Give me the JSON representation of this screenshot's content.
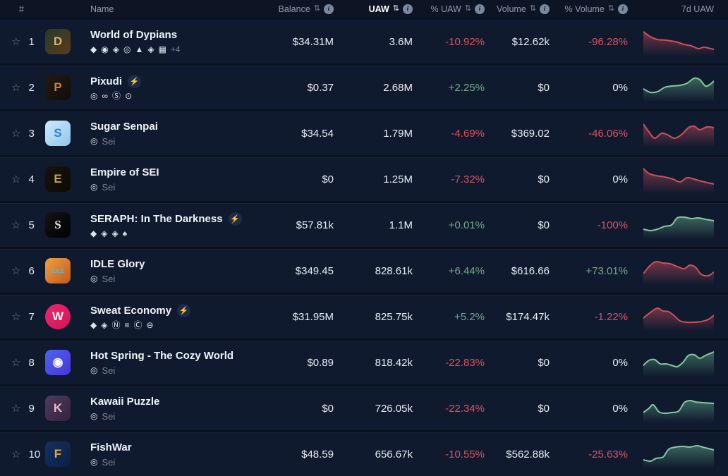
{
  "icons": {
    "star": "☆",
    "bolt": "⚡",
    "sort": "⇅",
    "info": "i"
  },
  "colors": {
    "positive": "#72a886",
    "negative": "#d8545e",
    "neutral": "#edf0f5",
    "spark_red_line": "#cf4e59",
    "spark_red_fill": "#d4515c",
    "spark_green_line": "#85c9a0",
    "spark_green_fill": "#6fc093",
    "row_bg": "#101a2f",
    "header_bg": "#0d1524"
  },
  "header": {
    "columns": [
      {
        "label": "#"
      },
      {
        "label": "Name"
      },
      {
        "label": "Balance",
        "sortable": true,
        "info": true
      },
      {
        "label": "UAW",
        "sortable": true,
        "info": true,
        "active": true
      },
      {
        "label": "% UAW",
        "sortable": true,
        "info": true
      },
      {
        "label": "Volume",
        "sortable": true,
        "info": true
      },
      {
        "label": "% Volume",
        "sortable": true,
        "info": true
      },
      {
        "label": "7d UAW"
      }
    ]
  },
  "chart_data": {
    "type": "line",
    "note": "7d UAW sparklines per row; points are [x 0-100, y 0-40 top-down]"
  },
  "rows": [
    {
      "rank": "1",
      "name": "World of Dypians",
      "boosted": false,
      "icon": {
        "glyph": "D",
        "fg": "#d9b36a",
        "bg1": "#243b2e",
        "bg2": "#5a3b1a"
      },
      "chains": [
        {
          "name": "ethereum",
          "glyph": "◆"
        },
        {
          "name": "base",
          "glyph": "◉"
        },
        {
          "name": "bnb-chain",
          "glyph": "◈"
        },
        {
          "name": "sei",
          "glyph": "◎"
        },
        {
          "name": "avalanche",
          "glyph": "▲"
        },
        {
          "name": "opbnb",
          "glyph": "◈"
        },
        {
          "name": "manta",
          "glyph": "▦"
        }
      ],
      "chains_extra": "+4",
      "chain_label": "",
      "balance": "$34.31M",
      "uaw": "3.6M",
      "uaw_pct": "-10.92%",
      "uaw_dir": "down",
      "volume": "$12.62k",
      "volume_pct": "-96.28%",
      "volume_dir": "down",
      "spark": {
        "color": "red",
        "points": [
          [
            0,
            6
          ],
          [
            10,
            13
          ],
          [
            20,
            17
          ],
          [
            32,
            18
          ],
          [
            45,
            20
          ],
          [
            58,
            24
          ],
          [
            68,
            26
          ],
          [
            78,
            30
          ],
          [
            86,
            28
          ],
          [
            100,
            31
          ]
        ]
      }
    },
    {
      "rank": "2",
      "name": "Pixudi",
      "boosted": true,
      "icon": {
        "glyph": "P",
        "fg": "#d3803f",
        "bg1": "#221a12",
        "bg2": "#120d09"
      },
      "chains": [
        {
          "name": "sei",
          "glyph": "◎"
        },
        {
          "name": "link-chain",
          "glyph": "∞"
        },
        {
          "name": "skale",
          "glyph": "Ⓢ"
        },
        {
          "name": "quai",
          "glyph": "⊙"
        }
      ],
      "chains_extra": "",
      "chain_label": "",
      "balance": "$0.37",
      "uaw": "2.68M",
      "uaw_pct": "+2.25%",
      "uaw_dir": "up",
      "volume": "$0",
      "volume_pct": "0%",
      "volume_dir": "neutral",
      "spark": {
        "color": "green",
        "points": [
          [
            0,
            22
          ],
          [
            10,
            27
          ],
          [
            20,
            26
          ],
          [
            30,
            20
          ],
          [
            40,
            18
          ],
          [
            52,
            17
          ],
          [
            62,
            14
          ],
          [
            72,
            7
          ],
          [
            80,
            9
          ],
          [
            88,
            18
          ],
          [
            94,
            16
          ],
          [
            100,
            11
          ]
        ]
      }
    },
    {
      "rank": "3",
      "name": "Sugar Senpai",
      "boosted": false,
      "icon": {
        "glyph": "S",
        "fg": "#2f7fd0",
        "bg1": "#cfeafa",
        "bg2": "#8fc6ee"
      },
      "chains": [
        {
          "name": "sei",
          "glyph": "◎"
        }
      ],
      "chains_extra": "",
      "chain_label": "Sei",
      "balance": "$34.54",
      "uaw": "1.79M",
      "uaw_pct": "-4.69%",
      "uaw_dir": "down",
      "volume": "$369.02",
      "volume_pct": "-46.06%",
      "volume_dir": "down",
      "spark": {
        "color": "red",
        "points": [
          [
            0,
            7
          ],
          [
            8,
            18
          ],
          [
            16,
            27
          ],
          [
            26,
            20
          ],
          [
            34,
            22
          ],
          [
            44,
            27
          ],
          [
            54,
            22
          ],
          [
            64,
            12
          ],
          [
            72,
            10
          ],
          [
            80,
            15
          ],
          [
            90,
            11
          ],
          [
            100,
            12
          ]
        ]
      }
    },
    {
      "rank": "4",
      "name": "Empire of SEI",
      "boosted": false,
      "icon": {
        "glyph": "E",
        "fg": "#caa24d",
        "bg1": "#17130a",
        "bg2": "#0c0a06"
      },
      "chains": [
        {
          "name": "sei",
          "glyph": "◎"
        }
      ],
      "chains_extra": "",
      "chain_label": "Sei",
      "balance": "$0",
      "uaw": "1.25M",
      "uaw_pct": "-7.32%",
      "uaw_dir": "down",
      "volume": "$0",
      "volume_pct": "0%",
      "volume_dir": "neutral",
      "spark": {
        "color": "red",
        "points": [
          [
            0,
            5
          ],
          [
            8,
            12
          ],
          [
            18,
            15
          ],
          [
            30,
            17
          ],
          [
            42,
            20
          ],
          [
            52,
            24
          ],
          [
            62,
            18
          ],
          [
            72,
            20
          ],
          [
            82,
            23
          ],
          [
            100,
            27
          ]
        ]
      }
    },
    {
      "rank": "5",
      "name": "SERAPH: In The Darkness",
      "boosted": true,
      "icon": {
        "glyph": "S",
        "fg": "#e8e6e0",
        "bg1": "#141414",
        "bg2": "#000000",
        "serif": true
      },
      "chains": [
        {
          "name": "ethereum",
          "glyph": "◆"
        },
        {
          "name": "bnb-chain",
          "glyph": "◈"
        },
        {
          "name": "opbnb",
          "glyph": "◈"
        },
        {
          "name": "treasure",
          "glyph": "♠"
        }
      ],
      "chains_extra": "",
      "chain_label": "",
      "balance": "$57.81k",
      "uaw": "1.1M",
      "uaw_pct": "+0.01%",
      "uaw_dir": "up",
      "volume": "$0",
      "volume_pct": "-100%",
      "volume_dir": "down",
      "spark": {
        "color": "green",
        "points": [
          [
            0,
            26
          ],
          [
            10,
            28
          ],
          [
            20,
            26
          ],
          [
            30,
            22
          ],
          [
            40,
            20
          ],
          [
            48,
            10
          ],
          [
            58,
            9
          ],
          [
            68,
            11
          ],
          [
            78,
            10
          ],
          [
            88,
            12
          ],
          [
            100,
            14
          ]
        ]
      }
    },
    {
      "rank": "6",
      "name": "IDLE Glory",
      "boosted": false,
      "icon": {
        "glyph": "IDLE",
        "fg": "#58b7e8",
        "bg1": "#f0a03c",
        "bg2": "#c05a20",
        "small": true
      },
      "chains": [
        {
          "name": "sei",
          "glyph": "◎"
        }
      ],
      "chains_extra": "",
      "chain_label": "Sei",
      "balance": "$349.45",
      "uaw": "828.61k",
      "uaw_pct": "+6.44%",
      "uaw_dir": "up",
      "volume": "$616.66",
      "volume_pct": "+73.01%",
      "volume_dir": "up",
      "spark": {
        "color": "red",
        "points": [
          [
            0,
            24
          ],
          [
            10,
            12
          ],
          [
            18,
            7
          ],
          [
            28,
            9
          ],
          [
            38,
            10
          ],
          [
            48,
            14
          ],
          [
            58,
            17
          ],
          [
            66,
            12
          ],
          [
            74,
            15
          ],
          [
            82,
            25
          ],
          [
            92,
            27
          ],
          [
            100,
            22
          ]
        ]
      }
    },
    {
      "rank": "7",
      "name": "Sweat Economy",
      "boosted": true,
      "icon": {
        "glyph": "W",
        "fg": "#ffffff",
        "bg1": "#f0256e",
        "bg2": "#d11558",
        "shape": "circle"
      },
      "chains": [
        {
          "name": "ethereum",
          "glyph": "◆"
        },
        {
          "name": "bnb-chain",
          "glyph": "◈"
        },
        {
          "name": "near",
          "glyph": "Ⓝ"
        },
        {
          "name": "aurora",
          "glyph": "≡"
        },
        {
          "name": "combo",
          "glyph": "Ⓒ"
        },
        {
          "name": "ton",
          "glyph": "⊖"
        }
      ],
      "chains_extra": "",
      "chain_label": "",
      "balance": "$31.95M",
      "uaw": "825.75k",
      "uaw_pct": "+5.2%",
      "uaw_dir": "up",
      "volume": "$174.47k",
      "volume_pct": "-1.22%",
      "volume_dir": "down",
      "spark": {
        "color": "red",
        "points": [
          [
            0,
            22
          ],
          [
            10,
            14
          ],
          [
            20,
            8
          ],
          [
            28,
            12
          ],
          [
            36,
            13
          ],
          [
            44,
            19
          ],
          [
            52,
            26
          ],
          [
            62,
            28
          ],
          [
            72,
            28
          ],
          [
            82,
            27
          ],
          [
            92,
            24
          ],
          [
            100,
            18
          ]
        ]
      }
    },
    {
      "rank": "8",
      "name": "Hot Spring - The Cozy World",
      "boosted": false,
      "icon": {
        "glyph": "◉",
        "fg": "#ffffff",
        "bg1": "#4a63f0",
        "bg2": "#4936d8"
      },
      "chains": [
        {
          "name": "sei",
          "glyph": "◎"
        }
      ],
      "chains_extra": "",
      "chain_label": "Sei",
      "balance": "$0.89",
      "uaw": "818.42k",
      "uaw_pct": "-22.83%",
      "uaw_dir": "down",
      "volume": "$0",
      "volume_pct": "0%",
      "volume_dir": "neutral",
      "spark": {
        "color": "green",
        "points": [
          [
            0,
            24
          ],
          [
            8,
            17
          ],
          [
            16,
            16
          ],
          [
            24,
            22
          ],
          [
            32,
            22
          ],
          [
            40,
            24
          ],
          [
            48,
            26
          ],
          [
            56,
            20
          ],
          [
            64,
            10
          ],
          [
            72,
            9
          ],
          [
            80,
            14
          ],
          [
            88,
            10
          ],
          [
            100,
            5
          ]
        ]
      }
    },
    {
      "rank": "9",
      "name": "Kawaii Puzzle",
      "boosted": false,
      "icon": {
        "glyph": "K",
        "fg": "#f3b8c8",
        "bg1": "#4e3a5e",
        "bg2": "#33243f"
      },
      "chains": [
        {
          "name": "sei",
          "glyph": "◎"
        }
      ],
      "chains_extra": "",
      "chain_label": "Sei",
      "balance": "$0",
      "uaw": "726.05k",
      "uaw_pct": "-22.34%",
      "uaw_dir": "down",
      "volume": "$0",
      "volume_pct": "0%",
      "volume_dir": "neutral",
      "spark": {
        "color": "green",
        "points": [
          [
            0,
            26
          ],
          [
            8,
            20
          ],
          [
            14,
            15
          ],
          [
            22,
            25
          ],
          [
            30,
            27
          ],
          [
            40,
            26
          ],
          [
            50,
            24
          ],
          [
            58,
            12
          ],
          [
            66,
            9
          ],
          [
            74,
            11
          ],
          [
            84,
            12
          ],
          [
            100,
            13
          ]
        ]
      }
    },
    {
      "rank": "10",
      "name": "FishWar",
      "boosted": false,
      "icon": {
        "glyph": "F",
        "fg": "#f0a43c",
        "bg1": "#143263",
        "bg2": "#0c1f42"
      },
      "chains": [
        {
          "name": "sei",
          "glyph": "◎"
        }
      ],
      "chains_extra": "",
      "chain_label": "Sei",
      "balance": "$48.59",
      "uaw": "656.67k",
      "uaw_pct": "-10.55%",
      "uaw_dir": "down",
      "volume": "$562.88k",
      "volume_pct": "-25.63%",
      "volume_dir": "down",
      "spark": {
        "color": "green",
        "points": [
          [
            0,
            28
          ],
          [
            10,
            30
          ],
          [
            18,
            26
          ],
          [
            28,
            24
          ],
          [
            36,
            13
          ],
          [
            46,
            10
          ],
          [
            56,
            9
          ],
          [
            66,
            10
          ],
          [
            76,
            8
          ],
          [
            84,
            10
          ],
          [
            92,
            12
          ],
          [
            100,
            14
          ]
        ]
      }
    }
  ]
}
